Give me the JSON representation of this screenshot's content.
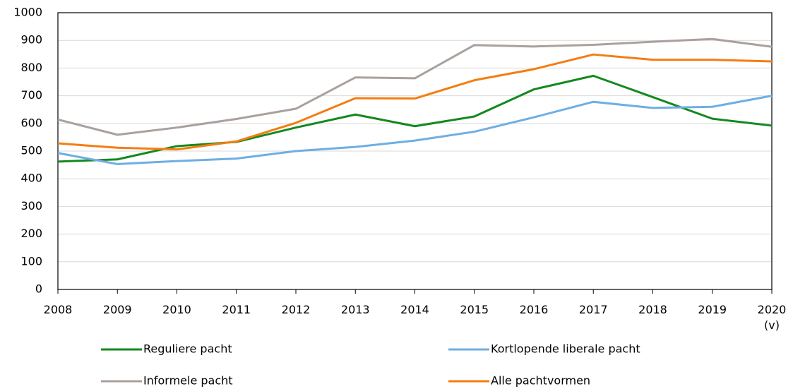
{
  "chart_data": {
    "type": "line",
    "categories": [
      "2008",
      "2009",
      "2010",
      "2011",
      "2012",
      "2013",
      "2014",
      "2015",
      "2016",
      "2017",
      "2018",
      "2019",
      "2020 (v)"
    ],
    "series": [
      {
        "name": "Reguliere pacht",
        "color": "#13891f",
        "values": [
          462,
          470,
          518,
          533,
          585,
          632,
          590,
          625,
          723,
          772,
          695,
          617,
          592
        ]
      },
      {
        "name": "Kortlopende liberale pacht",
        "color": "#6faee2",
        "values": [
          493,
          453,
          464,
          473,
          500,
          515,
          538,
          570,
          622,
          678,
          656,
          660,
          700
        ]
      },
      {
        "name": "Informele pacht",
        "color": "#a9a19d",
        "values": [
          614,
          559,
          585,
          616,
          653,
          766,
          763,
          883,
          878,
          884,
          895,
          905,
          877
        ]
      },
      {
        "name": "Alle pachtvormen",
        "color": "#f47d12",
        "values": [
          528,
          512,
          506,
          535,
          602,
          691,
          690,
          756,
          796,
          849,
          830,
          830,
          824
        ]
      }
    ],
    "ylim": [
      0,
      1000
    ],
    "yticks": [
      0,
      100,
      200,
      300,
      400,
      500,
      600,
      700,
      800,
      900,
      1000
    ],
    "grid": true
  }
}
